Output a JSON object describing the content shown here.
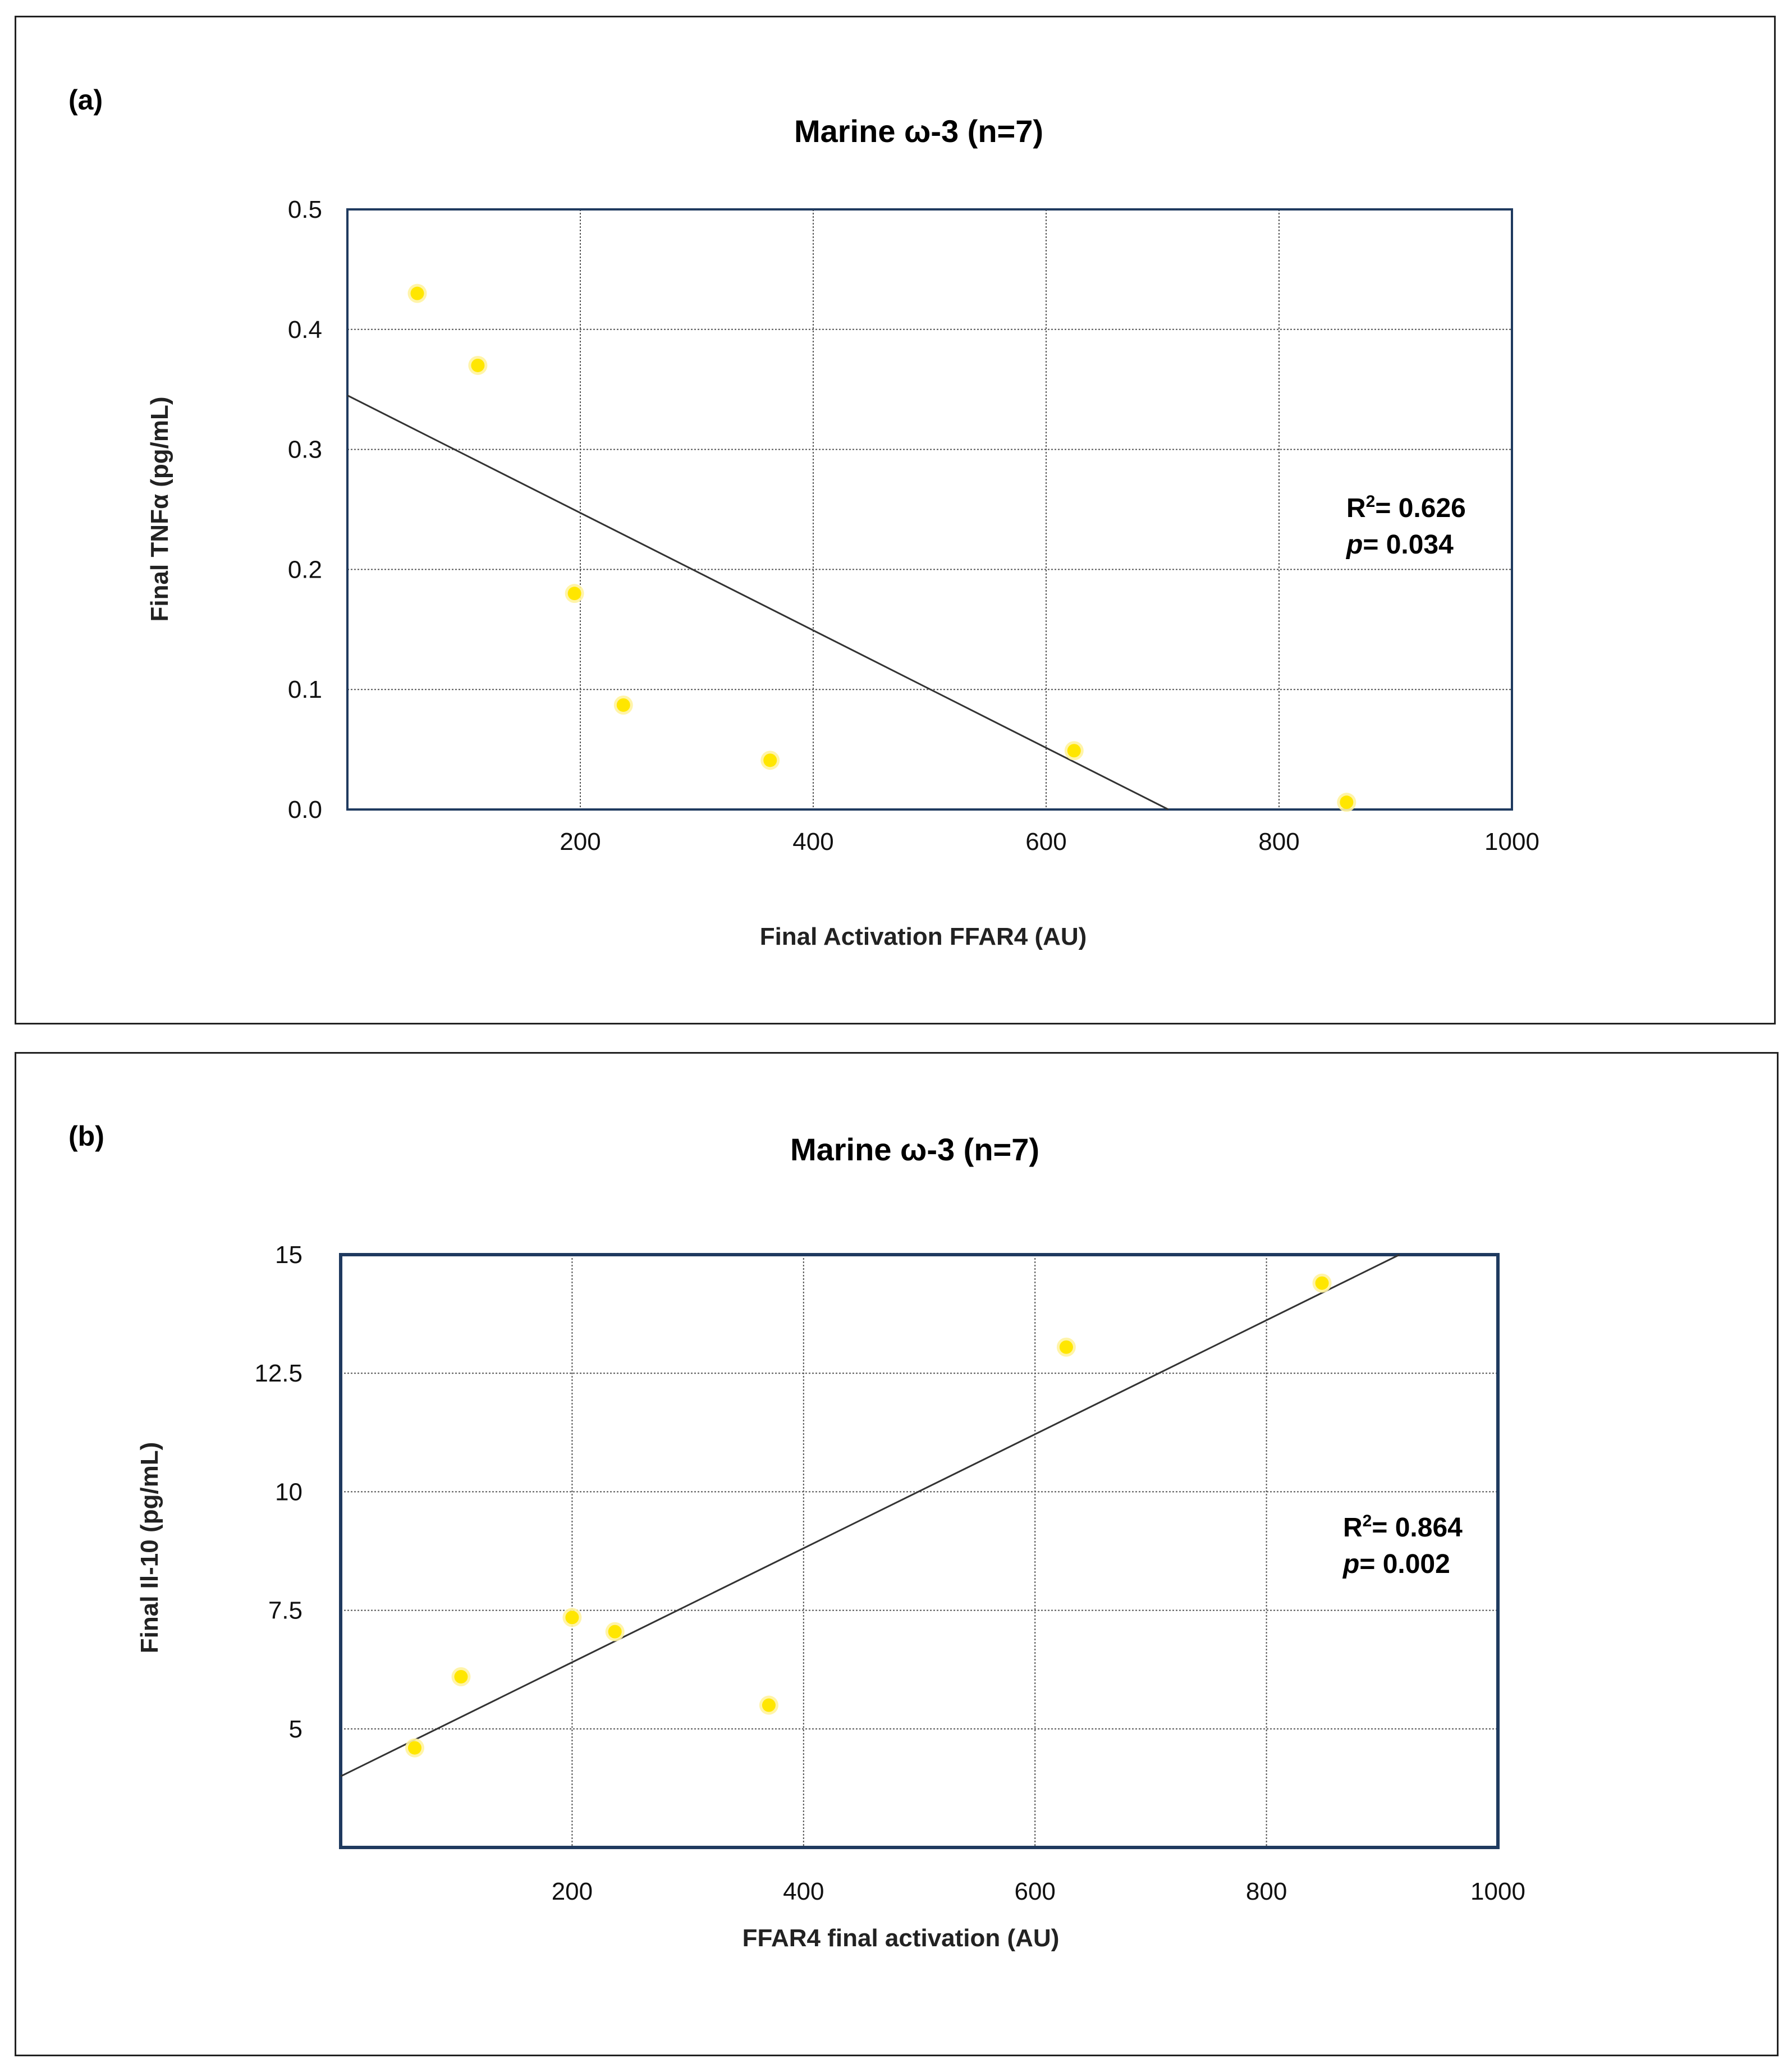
{
  "chart_data": [
    {
      "type": "scatter",
      "panel_label": "(a)",
      "title": "Marine ω-3 (n=7)",
      "xlabel": "Final Activation FFAR4 (AU)",
      "ylabel": "Final TNFα (pg/mL)",
      "xlim": [
        0,
        1000
      ],
      "ylim": [
        0,
        0.5
      ],
      "xticks": [
        200,
        400,
        600,
        800,
        1000
      ],
      "xtick_labels": [
        "200",
        "400",
        "600",
        "800",
        "1000"
      ],
      "yticks": [
        0,
        0.1,
        0.2,
        0.3,
        0.4,
        0.5
      ],
      "ytick_labels": [
        "0.0",
        "0.1",
        "0.2",
        "0.3",
        "0.4",
        "0.5"
      ],
      "grid": true,
      "points": [
        {
          "x": 60,
          "y": 0.43
        },
        {
          "x": 112,
          "y": 0.37
        },
        {
          "x": 195,
          "y": 0.18
        },
        {
          "x": 237,
          "y": 0.087
        },
        {
          "x": 363,
          "y": 0.041
        },
        {
          "x": 624,
          "y": 0.049
        },
        {
          "x": 858,
          "y": 0.006
        }
      ],
      "trendline": {
        "x": [
          0,
          705
        ],
        "y": [
          0.345,
          0.0
        ]
      },
      "annotation": {
        "r2_label": "R",
        "r2_sup": "2",
        "r2_text": "= 0.626",
        "p_label": "p",
        "p_text": "= 0.034"
      },
      "colors": {
        "marker": "#ffe600",
        "marker_glow": "#fff3a0",
        "line": "#333333",
        "grid": "#555555",
        "axes": "#1f3a5f"
      }
    },
    {
      "type": "scatter",
      "panel_label": "(b)",
      "title": "Marine ω-3 (n=7)",
      "xlabel": "FFAR4 final activation (AU)",
      "ylabel": "Final Il-10 (pg/mL)",
      "xlim": [
        0,
        1000
      ],
      "ylim": [
        2.5,
        15
      ],
      "xticks": [
        200,
        400,
        600,
        800,
        1000
      ],
      "xtick_labels": [
        "200",
        "400",
        "600",
        "800",
        "1000"
      ],
      "yticks": [
        5,
        7.5,
        10,
        12.5,
        15
      ],
      "ytick_labels": [
        "5",
        "7.5",
        "10",
        "12.5",
        "15"
      ],
      "grid": true,
      "points": [
        {
          "x": 64,
          "y": 4.6
        },
        {
          "x": 104,
          "y": 6.1
        },
        {
          "x": 200,
          "y": 7.35
        },
        {
          "x": 237,
          "y": 7.05
        },
        {
          "x": 370,
          "y": 5.5
        },
        {
          "x": 627,
          "y": 13.05
        },
        {
          "x": 848,
          "y": 14.4
        }
      ],
      "trendline": {
        "x": [
          0,
          915
        ],
        "y": [
          4.0,
          15.0
        ]
      },
      "annotation": {
        "r2_label": "R",
        "r2_sup": "2",
        "r2_text": "= 0.864",
        "p_label": "p",
        "p_text": "= 0.002"
      },
      "colors": {
        "marker": "#ffe600",
        "marker_glow": "#fff3a0",
        "line": "#333333",
        "grid": "#555555",
        "axes": "#1f3a5f"
      }
    }
  ]
}
